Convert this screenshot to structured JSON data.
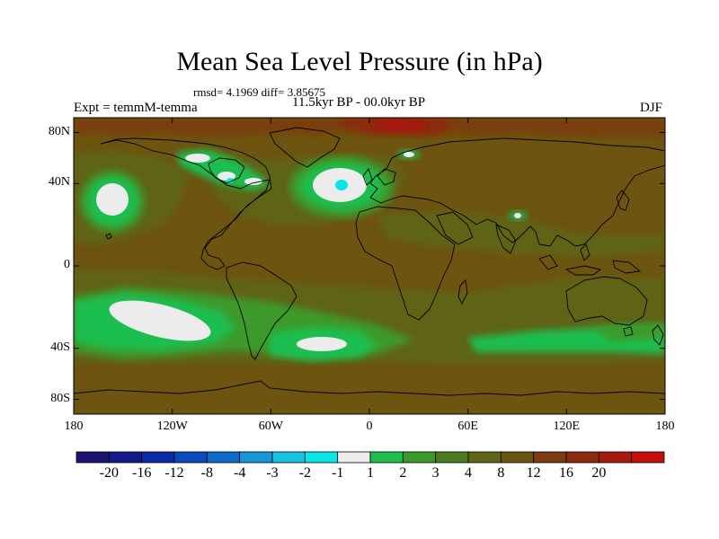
{
  "title": "Mean Sea Level Pressure (in hPa)",
  "stats": "rmsd= 4.1969 diff= 3.85675",
  "experiment": "Expt = temmM-temma",
  "period": "11.5kyr BP - 00.0kyr BP",
  "season": "DJF",
  "lat_labels": [
    "80N",
    "40N",
    "0",
    "40S",
    "80S"
  ],
  "lon_labels": [
    "180",
    "120W",
    "60W",
    "0",
    "60E",
    "120E",
    "180"
  ],
  "colorbar": {
    "colors": [
      "#1c1470",
      "#121a8c",
      "#0b2aa6",
      "#0a4bbb",
      "#0a6cc8",
      "#1596d6",
      "#18c2e2",
      "#0ae6e6",
      "#ececec",
      "#1fbe4f",
      "#3c9a2a",
      "#4b7d20",
      "#5f6418",
      "#6d5410",
      "#7a3c10",
      "#8c2a10",
      "#a8190f",
      "#c4100d"
    ],
    "labels": [
      "-20",
      "-16",
      "-12",
      "-8",
      "-4",
      "-3",
      "-2",
      "-1",
      "1",
      "2",
      "3",
      "4",
      "8",
      "12",
      "16",
      "20"
    ]
  },
  "map_colors": {
    "background": "#6d5410",
    "band_4_8": "#5f6418",
    "band_3_4": "#4b7d20",
    "band_2_3": "#3c9a2a",
    "band_1_2": "#1fbe4f",
    "band_m1_1": "#ececec",
    "band_m2_m1": "#0ae6e6",
    "band_12_16": "#7a3c10",
    "band_16_20": "#8c2a10",
    "band_20": "#a8190f",
    "coast": "#000000"
  }
}
